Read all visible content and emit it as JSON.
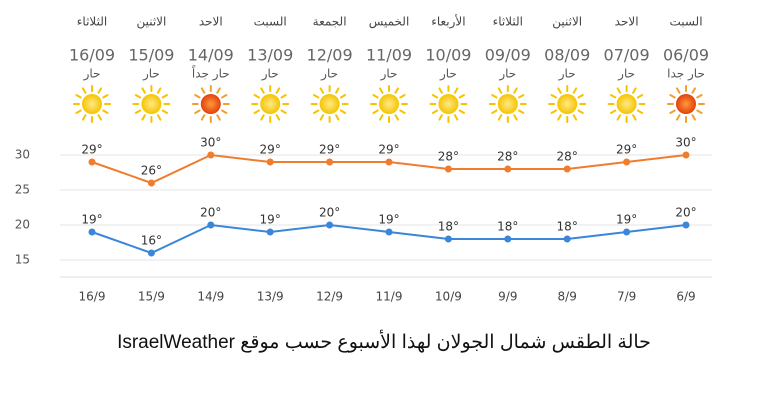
{
  "chart_data": {
    "type": "line",
    "caption": "حالة الطقس شمال الجولان لهذا الأسبوع حسب موقع IsraelWeather",
    "day_names": [
      "الثلاثاء",
      "الاثنين",
      "الاحد",
      "السبت",
      "الجمعة",
      "الخميس",
      "الأربعاء",
      "الثلاثاء",
      "الاثنين",
      "الاحد",
      "السبت"
    ],
    "dates": [
      "16/09",
      "15/09",
      "14/09",
      "13/09",
      "12/09",
      "11/09",
      "10/09",
      "09/09",
      "08/09",
      "07/09",
      "06/09"
    ],
    "conditions": [
      "حار",
      "حار",
      "حار جداً",
      "حار",
      "حار",
      "حار",
      "حار",
      "حار",
      "حار",
      "حار",
      "حار جدا"
    ],
    "categories": [
      "16/9",
      "15/9",
      "14/9",
      "13/9",
      "12/9",
      "11/9",
      "10/9",
      "9/9",
      "8/9",
      "7/9",
      "6/9"
    ],
    "series": [
      {
        "color": "#f07c2e",
        "values": [
          29,
          26,
          30,
          29,
          29,
          29,
          28,
          28,
          28,
          29,
          30
        ],
        "value_labels": [
          "29°",
          "26°",
          "30°",
          "29°",
          "29°",
          "29°",
          "28°",
          "28°",
          "28°",
          "29°",
          "30°"
        ]
      },
      {
        "color": "#3b86d8",
        "values": [
          19,
          16,
          20,
          19,
          20,
          19,
          18,
          18,
          18,
          19,
          20
        ],
        "value_labels": [
          "19°",
          "16°",
          "20°",
          "19°",
          "20°",
          "19°",
          "18°",
          "18°",
          "18°",
          "19°",
          "20°"
        ]
      }
    ],
    "ylim": [
      12,
      32
    ],
    "yticks": [
      15,
      20,
      25,
      30
    ],
    "grid": true
  }
}
